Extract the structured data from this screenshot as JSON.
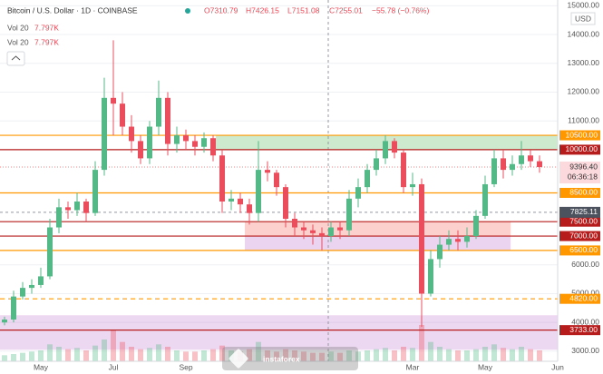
{
  "header": {
    "symbol": "Bitcoin / U.S. Dollar · 1D · COINBASE",
    "ohlc": [
      "O7310.79",
      "H7426.15",
      "L7151.08",
      "C7255.01"
    ],
    "change": "−55.78 (−0.76%)",
    "vol_lines": [
      {
        "label": "Vol 20",
        "value": "7.797K"
      },
      {
        "label": "Vol 20",
        "value": "7.797K"
      }
    ]
  },
  "chart_data": {
    "type": "candlestick",
    "y_unit": "USD",
    "categories": [
      null,
      null,
      null,
      null,
      "May",
      null,
      null,
      null,
      null,
      null,
      null,
      null,
      "Jul",
      null,
      null,
      null,
      null,
      null,
      null,
      null,
      "Sep",
      null,
      null,
      null,
      null,
      null,
      null,
      null,
      null,
      null,
      null,
      null,
      null,
      null,
      null,
      null,
      null,
      null,
      null,
      null,
      null,
      null,
      null,
      null,
      null,
      "Mar",
      null,
      null,
      null,
      null,
      null,
      null,
      null,
      "May",
      null,
      null,
      null,
      null,
      null,
      null,
      null,
      "Jun"
    ],
    "open": [
      4000,
      4100,
      4900,
      5200,
      5300,
      5600,
      7300,
      8000,
      7900,
      8200,
      7800,
      9300,
      11800,
      11600,
      10800,
      10300,
      9700,
      10800,
      11800,
      10200,
      10500,
      10300,
      10100,
      10400,
      9800,
      8200,
      8300,
      8100,
      7800,
      9300,
      9200,
      8700,
      7600,
      7300,
      7200,
      7100,
      7000,
      7300,
      7200,
      8300,
      8700,
      9300,
      9700,
      10300,
      9900,
      8700,
      8800,
      5000,
      6200,
      6700,
      6900,
      6800,
      7000,
      7700,
      8800,
      9700,
      9300,
      9500,
      9800,
      9600,
      null,
      null
    ],
    "high": [
      4200,
      5100,
      5400,
      5500,
      5900,
      7600,
      8300,
      8200,
      8500,
      8300,
      9600,
      12500,
      13800,
      12000,
      11200,
      10500,
      11000,
      12400,
      12000,
      10800,
      10700,
      10500,
      10600,
      10500,
      10000,
      8600,
      8500,
      8300,
      10300,
      9600,
      9300,
      8800,
      7800,
      7500,
      7400,
      7300,
      7500,
      7500,
      8600,
      9000,
      9500,
      10000,
      10500,
      10400,
      10000,
      9200,
      9000,
      6500,
      7000,
      7200,
      7200,
      7300,
      7900,
      9100,
      10000,
      10000,
      9800,
      10300,
      10000,
      9800,
      null,
      null
    ],
    "low": [
      3900,
      4000,
      4800,
      5000,
      5200,
      5500,
      7100,
      7600,
      7700,
      7500,
      7700,
      9100,
      10500,
      10500,
      9900,
      9500,
      9500,
      10500,
      9800,
      9900,
      10000,
      9800,
      9900,
      9600,
      7800,
      7900,
      7800,
      7400,
      7500,
      8900,
      8400,
      7300,
      7000,
      6900,
      6700,
      6500,
      6800,
      6900,
      7000,
      8000,
      8500,
      9100,
      9500,
      9700,
      8500,
      8400,
      3850,
      4900,
      5900,
      6500,
      6500,
      6600,
      6900,
      7600,
      8700,
      9000,
      9100,
      9300,
      9400,
      9200,
      null,
      null
    ],
    "close": [
      4100,
      4900,
      5200,
      5300,
      5600,
      7300,
      8000,
      7900,
      8200,
      7800,
      9300,
      11800,
      11600,
      10800,
      10300,
      9700,
      10800,
      11800,
      10200,
      10500,
      10300,
      10100,
      10400,
      9800,
      8200,
      8300,
      8100,
      7800,
      9300,
      9200,
      8700,
      7600,
      7300,
      7200,
      7100,
      7000,
      7300,
      7200,
      8300,
      8700,
      9300,
      9700,
      10300,
      9900,
      8700,
      8800,
      5000,
      6200,
      6700,
      6900,
      6800,
      7000,
      7700,
      8800,
      9700,
      9300,
      9500,
      9800,
      9600,
      9396.4,
      null,
      null
    ],
    "volume": [
      5,
      6,
      7,
      8,
      9,
      14,
      12,
      10,
      11,
      9,
      13,
      18,
      26,
      16,
      12,
      10,
      11,
      14,
      12,
      9,
      8,
      8,
      9,
      10,
      13,
      9,
      8,
      10,
      16,
      9,
      8,
      10,
      9,
      8,
      7,
      7,
      8,
      7,
      9,
      8,
      9,
      10,
      11,
      9,
      12,
      11,
      30,
      16,
      12,
      10,
      9,
      9,
      10,
      12,
      14,
      11,
      10,
      12,
      10,
      9,
      null,
      null
    ],
    "up_color": "#53b987",
    "down_color": "#eb4d5c",
    "ylim": [
      2650,
      15200
    ],
    "yticks": [
      {
        "value": 3000,
        "label": "3000.00"
      },
      {
        "value": 4000,
        "label": "4000.00"
      },
      {
        "value": 5000,
        "label": "5000.00"
      },
      {
        "value": 6000,
        "label": "6000.00"
      },
      {
        "value": 11000,
        "label": "11000.00"
      },
      {
        "value": 12000,
        "label": "12000.00"
      },
      {
        "value": 13000,
        "label": "13000.00"
      },
      {
        "value": 14000,
        "label": "14000.00"
      },
      {
        "value": 15000,
        "label": "15000.00"
      }
    ],
    "grid": true,
    "levels": [
      {
        "value": 10500,
        "label": "10500.00",
        "color": "#ff9800",
        "style": "solid"
      },
      {
        "value": 10000,
        "label": "10000.00",
        "color": "#b71c1c",
        "style": "solid"
      },
      {
        "value": 8500,
        "label": "8500.00",
        "color": "#ff9800",
        "style": "solid"
      },
      {
        "value": 7500,
        "label": "7500.00",
        "color": "#b71c1c",
        "style": "solid"
      },
      {
        "value": 7000,
        "label": "7000.00",
        "color": "#b71c1c",
        "style": "solid"
      },
      {
        "value": 6500,
        "label": "6500.00",
        "color": "#ff9800",
        "style": "solid"
      },
      {
        "value": 4820,
        "label": "4820.00",
        "color": "#ff9800",
        "style": "dashed"
      },
      {
        "value": 3733,
        "label": "3733.00",
        "color": "#b71c1c",
        "style": "solid"
      }
    ],
    "zones": [
      {
        "low": 10000,
        "high": 10500,
        "color": "rgba(76,175,80,0.28)"
      },
      {
        "low": 7000,
        "high": 7500,
        "color": "rgba(244,67,54,0.25)"
      },
      {
        "low": 6500,
        "high": 7000,
        "color": "rgba(156,39,176,0.2)"
      },
      {
        "low": 3050,
        "high": 4250,
        "color": "rgba(156,39,176,0.18)"
      }
    ],
    "current": {
      "value": 9396.4,
      "label": "9396.40",
      "countdown": "06:36:18"
    },
    "crosshair": {
      "value": 7825.11,
      "label": "7825.11"
    }
  },
  "watermark": "instaforex"
}
